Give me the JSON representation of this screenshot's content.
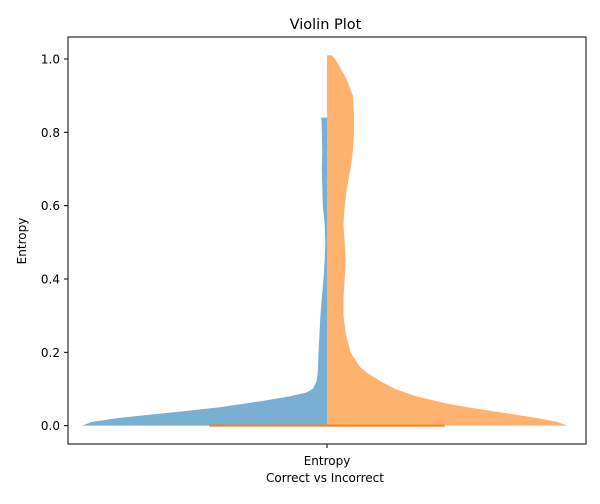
{
  "chart_data": {
    "type": "violin",
    "title": "Violin Plot",
    "xlabel": "Correct vs Incorrect",
    "ylabel": "Entropy",
    "categories": [
      "Entropy"
    ],
    "xlim": [
      -1.1,
      1.1
    ],
    "ylim": [
      -0.05,
      1.06
    ],
    "yticks": [
      0.0,
      0.2,
      0.4,
      0.6,
      0.8,
      1.0
    ],
    "ytick_labels": [
      "0.0",
      "0.2",
      "0.4",
      "0.6",
      "0.8",
      "1.0"
    ],
    "grid": false,
    "legend": "none",
    "series": [
      {
        "side": "left",
        "color": "#7aafd4",
        "profile": [
          {
            "y": 0.0,
            "w": 1.04
          },
          {
            "y": 0.01,
            "w": 1.0
          },
          {
            "y": 0.02,
            "w": 0.9
          },
          {
            "y": 0.03,
            "w": 0.75
          },
          {
            "y": 0.04,
            "w": 0.6
          },
          {
            "y": 0.05,
            "w": 0.46
          },
          {
            "y": 0.06,
            "w": 0.35
          },
          {
            "y": 0.07,
            "w": 0.25
          },
          {
            "y": 0.08,
            "w": 0.16
          },
          {
            "y": 0.09,
            "w": 0.09
          },
          {
            "y": 0.1,
            "w": 0.06
          },
          {
            "y": 0.12,
            "w": 0.045
          },
          {
            "y": 0.14,
            "w": 0.04
          },
          {
            "y": 0.16,
            "w": 0.038
          },
          {
            "y": 0.2,
            "w": 0.036
          },
          {
            "y": 0.25,
            "w": 0.032
          },
          {
            "y": 0.3,
            "w": 0.028
          },
          {
            "y": 0.35,
            "w": 0.022
          },
          {
            "y": 0.4,
            "w": 0.015
          },
          {
            "y": 0.45,
            "w": 0.01
          },
          {
            "y": 0.5,
            "w": 0.007
          },
          {
            "y": 0.55,
            "w": 0.01
          },
          {
            "y": 0.6,
            "w": 0.018
          },
          {
            "y": 0.65,
            "w": 0.02
          },
          {
            "y": 0.7,
            "w": 0.022
          },
          {
            "y": 0.75,
            "w": 0.02
          },
          {
            "y": 0.8,
            "w": 0.022
          },
          {
            "y": 0.84,
            "w": 0.024
          }
        ]
      },
      {
        "side": "right",
        "color": "#ffb26e",
        "profile": [
          {
            "y": 0.0,
            "w": 1.02
          },
          {
            "y": 0.01,
            "w": 0.98
          },
          {
            "y": 0.02,
            "w": 0.9
          },
          {
            "y": 0.03,
            "w": 0.8
          },
          {
            "y": 0.04,
            "w": 0.7
          },
          {
            "y": 0.05,
            "w": 0.6
          },
          {
            "y": 0.06,
            "w": 0.51
          },
          {
            "y": 0.08,
            "w": 0.38
          },
          {
            "y": 0.1,
            "w": 0.29
          },
          {
            "y": 0.12,
            "w": 0.23
          },
          {
            "y": 0.14,
            "w": 0.18
          },
          {
            "y": 0.16,
            "w": 0.14
          },
          {
            "y": 0.18,
            "w": 0.12
          },
          {
            "y": 0.2,
            "w": 0.1
          },
          {
            "y": 0.25,
            "w": 0.08
          },
          {
            "y": 0.3,
            "w": 0.07
          },
          {
            "y": 0.35,
            "w": 0.07
          },
          {
            "y": 0.4,
            "w": 0.075
          },
          {
            "y": 0.45,
            "w": 0.08
          },
          {
            "y": 0.5,
            "w": 0.075
          },
          {
            "y": 0.55,
            "w": 0.07
          },
          {
            "y": 0.6,
            "w": 0.075
          },
          {
            "y": 0.65,
            "w": 0.085
          },
          {
            "y": 0.7,
            "w": 0.1
          },
          {
            "y": 0.75,
            "w": 0.11
          },
          {
            "y": 0.8,
            "w": 0.115
          },
          {
            "y": 0.85,
            "w": 0.115
          },
          {
            "y": 0.9,
            "w": 0.11
          },
          {
            "y": 0.95,
            "w": 0.08
          },
          {
            "y": 1.0,
            "w": 0.035
          },
          {
            "y": 1.01,
            "w": 0.02
          }
        ]
      }
    ],
    "baseline": {
      "y": 0.0,
      "x": [
        -0.5,
        0.5
      ],
      "color": "#ff7f0e"
    }
  }
}
